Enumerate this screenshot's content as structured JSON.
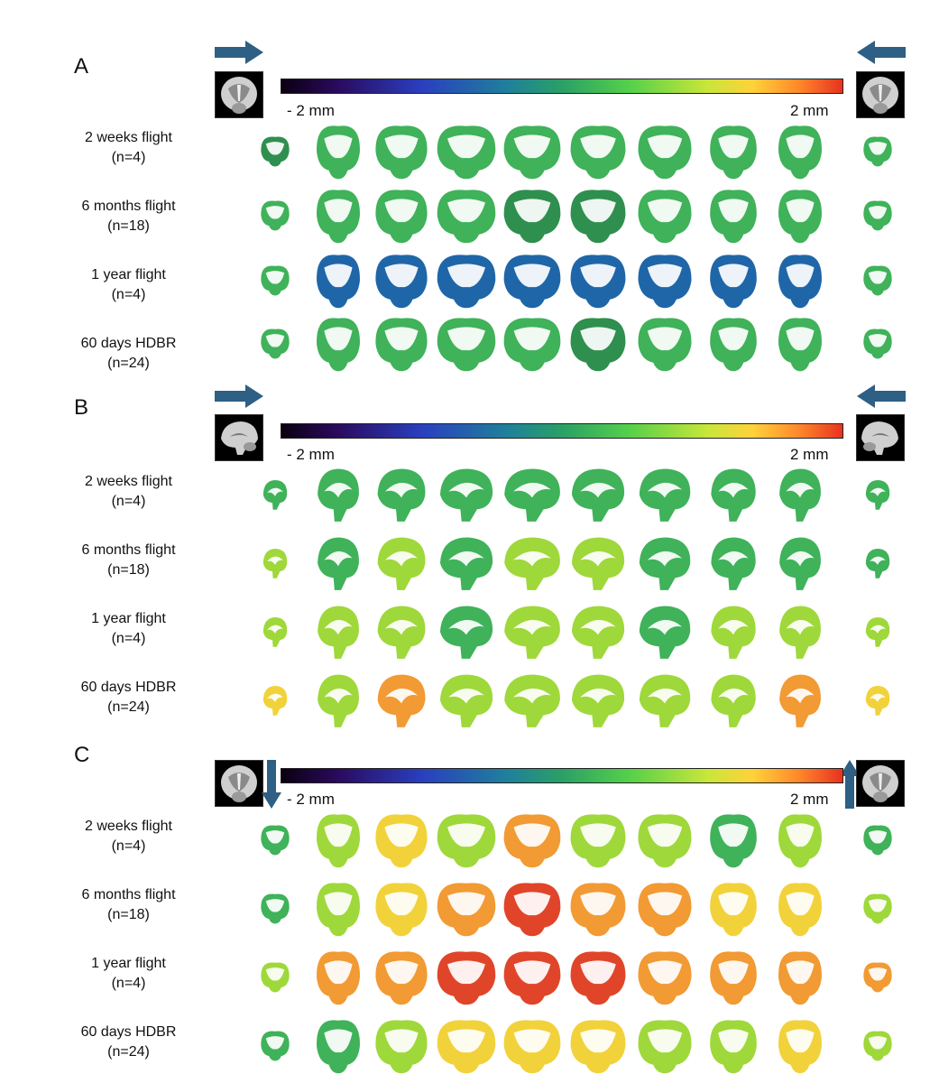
{
  "colors": {
    "arrow": "#2e5f84",
    "blue": "#1f66a8",
    "darkgreen": "#2f8f4f",
    "green": "#3fb25a",
    "lime": "#9fd83a",
    "yellow": "#f2d23a",
    "orange": "#f29a33",
    "red": "#e0452a"
  },
  "colorbar": {
    "min_label": "- 2 mm",
    "max_label": "2 mm"
  },
  "rows": [
    {
      "title": "2 weeks flight",
      "n": "(n=4)"
    },
    {
      "title": "6 months flight",
      "n": "(n=18)"
    },
    {
      "title": "1 year flight",
      "n": "(n=4)"
    },
    {
      "title": "60 days HDBR",
      "n": "(n=24)"
    }
  ],
  "panels": [
    {
      "letter": "A",
      "view": "coronal",
      "reference_icon": "coronal-brain-thumbnail-icon",
      "arrows": [
        "arrow-right-icon",
        "arrow-left-icon"
      ],
      "rows": [
        [
          "darkgreen",
          "green",
          "green",
          "green",
          "green",
          "green",
          "green",
          "green",
          "green",
          "green"
        ],
        [
          "green",
          "green",
          "green",
          "green",
          "darkgreen",
          "darkgreen",
          "green",
          "green",
          "green",
          "green"
        ],
        [
          "green",
          "blue",
          "blue",
          "blue",
          "blue",
          "blue",
          "blue",
          "blue",
          "blue",
          "green"
        ],
        [
          "green",
          "green",
          "green",
          "green",
          "green",
          "darkgreen",
          "green",
          "green",
          "green",
          "green"
        ]
      ]
    },
    {
      "letter": "B",
      "view": "sagittal",
      "reference_icon": "sagittal-brain-thumbnail-icon",
      "arrows": [
        "arrow-right-icon",
        "arrow-left-icon"
      ],
      "rows": [
        [
          "green",
          "green",
          "green",
          "green",
          "green",
          "green",
          "green",
          "green",
          "green",
          "green"
        ],
        [
          "lime",
          "green",
          "lime",
          "green",
          "lime",
          "lime",
          "green",
          "green",
          "green",
          "green"
        ],
        [
          "lime",
          "lime",
          "lime",
          "green",
          "lime",
          "lime",
          "green",
          "lime",
          "lime",
          "lime"
        ],
        [
          "yellow",
          "lime",
          "orange",
          "lime",
          "lime",
          "lime",
          "lime",
          "lime",
          "orange",
          "yellow"
        ]
      ]
    },
    {
      "letter": "C",
      "view": "coronal",
      "reference_icon": "coronal-brain-thumbnail-icon",
      "arrows": [
        "arrow-down-icon",
        "arrow-up-icon"
      ],
      "rows": [
        [
          "green",
          "lime",
          "yellow",
          "lime",
          "orange",
          "lime",
          "lime",
          "green",
          "lime",
          "green"
        ],
        [
          "green",
          "lime",
          "yellow",
          "orange",
          "red",
          "orange",
          "orange",
          "yellow",
          "yellow",
          "lime"
        ],
        [
          "lime",
          "orange",
          "orange",
          "red",
          "red",
          "red",
          "orange",
          "orange",
          "orange",
          "orange"
        ],
        [
          "green",
          "green",
          "lime",
          "yellow",
          "yellow",
          "yellow",
          "lime",
          "lime",
          "yellow",
          "lime"
        ]
      ]
    }
  ]
}
